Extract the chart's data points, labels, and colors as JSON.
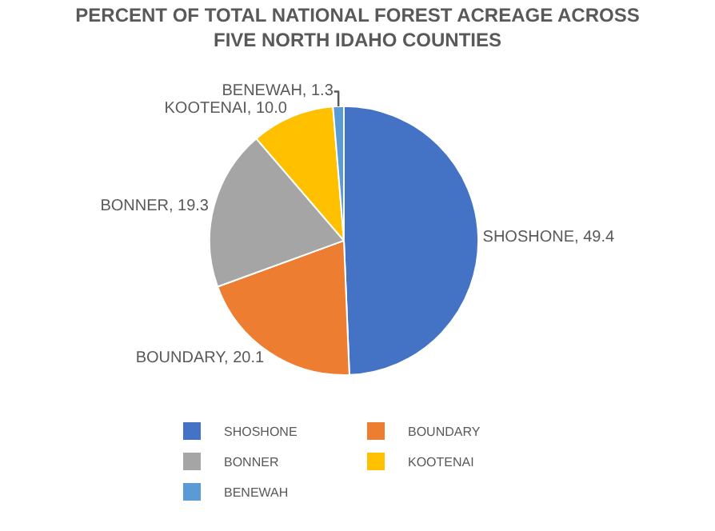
{
  "chart_data": {
    "type": "pie",
    "title": "PERCENT OF TOTAL NATIONAL FOREST ACREAGE ACROSS\nFIVE NORTH IDAHO COUNTIES",
    "categories": [
      "SHOSHONE",
      "BOUNDARY",
      "BONNER",
      "KOOTENAI",
      "BENEWAH"
    ],
    "values": [
      49.4,
      20.1,
      19.3,
      10.0,
      1.3
    ],
    "value_labels": [
      "SHOSHONE, 49.4",
      "BOUNDARY, 20.1",
      "BONNER, 19.3",
      "KOOTENAI, 10.0",
      "BENEWAH, 1.3"
    ],
    "colors": [
      "#4472c4",
      "#ed7d31",
      "#a5a5a5",
      "#ffc000",
      "#5b9bd5"
    ],
    "legend": "bottom"
  }
}
